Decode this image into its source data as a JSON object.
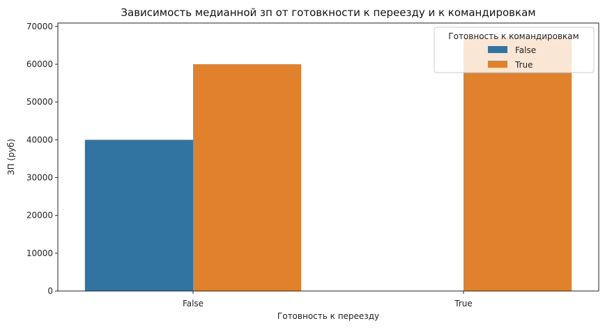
{
  "chart_data": {
    "type": "bar",
    "title": "Зависимость медианной зп от готовкности к переезду и к командировкам",
    "xlabel": "Готовность к переезду",
    "ylabel": "ЗП (руб)",
    "categories": [
      "False",
      "True"
    ],
    "ylim": [
      0,
      70900
    ],
    "yticks": [
      0,
      10000,
      20000,
      30000,
      40000,
      50000,
      60000,
      70000
    ],
    "grid": false,
    "legend": {
      "title": "Готовность к командировкам",
      "placement": "top-right"
    },
    "series": [
      {
        "name": "False",
        "color": "#3274a1",
        "values": [
          40000,
          null
        ]
      },
      {
        "name": "True",
        "color": "#e1812c",
        "values": [
          60000,
          67000
        ]
      }
    ]
  }
}
